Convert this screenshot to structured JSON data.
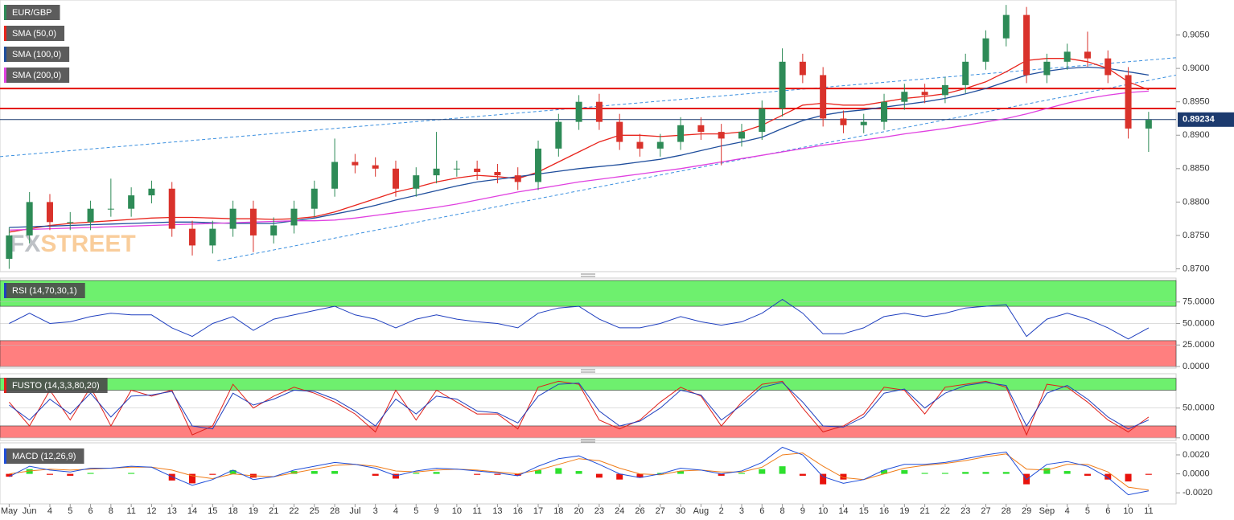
{
  "chart_data": [
    {
      "type": "candlestick",
      "title": "EUR/GBP",
      "watermark": [
        "FX",
        "STREET"
      ],
      "categories": [
        "May",
        "Jun",
        "4",
        "5",
        "6",
        "8",
        "11",
        "12",
        "13",
        "14",
        "15",
        "18",
        "19",
        "21",
        "22",
        "25",
        "28",
        "Jul",
        "3",
        "4",
        "5",
        "9",
        "10",
        "11",
        "13",
        "16",
        "17",
        "18",
        "20",
        "23",
        "24",
        "26",
        "27",
        "30",
        "Aug",
        "2",
        "3",
        "6",
        "8",
        "9",
        "10",
        "14",
        "15",
        "16",
        "19",
        "21",
        "22",
        "23",
        "27",
        "28",
        "29",
        "Sep",
        "4",
        "5",
        "6",
        "10",
        "11"
      ],
      "xlim": [
        -0.45,
        57.35
      ],
      "open": [
        0.8715,
        0.875,
        0.88,
        0.877,
        0.877,
        0.879,
        0.879,
        0.881,
        0.882,
        0.876,
        0.8735,
        0.876,
        0.879,
        0.875,
        0.8765,
        0.879,
        0.882,
        0.886,
        0.8855,
        0.885,
        0.882,
        0.884,
        0.885,
        0.885,
        0.8845,
        0.884,
        0.883,
        0.888,
        0.892,
        0.895,
        0.892,
        0.889,
        0.888,
        0.889,
        0.8915,
        0.8905,
        0.8895,
        0.8905,
        0.894,
        0.901,
        0.899,
        0.8925,
        0.8915,
        0.892,
        0.895,
        0.8965,
        0.896,
        0.8975,
        0.901,
        0.9045,
        0.908,
        0.899,
        0.901,
        0.9025,
        0.9015,
        0.899,
        0.891
      ],
      "high": [
        0.8762,
        0.8815,
        0.8812,
        0.8785,
        0.8802,
        0.8835,
        0.8822,
        0.8832,
        0.883,
        0.8772,
        0.8772,
        0.8802,
        0.8802,
        0.8777,
        0.8802,
        0.8832,
        0.8895,
        0.8872,
        0.8867,
        0.8862,
        0.8852,
        0.8905,
        0.8862,
        0.8862,
        0.8857,
        0.8852,
        0.8892,
        0.8932,
        0.896,
        0.8962,
        0.8932,
        0.8902,
        0.8902,
        0.8927,
        0.8927,
        0.8917,
        0.8917,
        0.8952,
        0.903,
        0.9022,
        0.9002,
        0.8937,
        0.8932,
        0.8962,
        0.8977,
        0.8977,
        0.8987,
        0.9022,
        0.9057,
        0.9095,
        0.9092,
        0.9022,
        0.9037,
        0.9055,
        0.9027,
        0.9002,
        0.8935
      ],
      "low": [
        0.87,
        0.8738,
        0.8758,
        0.8758,
        0.8758,
        0.8778,
        0.8778,
        0.8798,
        0.8748,
        0.872,
        0.8723,
        0.8748,
        0.8725,
        0.8738,
        0.8753,
        0.8778,
        0.8808,
        0.8843,
        0.8838,
        0.8808,
        0.8808,
        0.8828,
        0.8838,
        0.8833,
        0.8828,
        0.8818,
        0.8818,
        0.8868,
        0.8908,
        0.8908,
        0.8878,
        0.8868,
        0.8868,
        0.8878,
        0.8893,
        0.8855,
        0.8883,
        0.8893,
        0.8928,
        0.8978,
        0.8913,
        0.8903,
        0.8903,
        0.8908,
        0.8938,
        0.8948,
        0.8948,
        0.8963,
        0.8998,
        0.9033,
        0.8978,
        0.8978,
        0.8998,
        0.9003,
        0.8978,
        0.8895,
        0.8875
      ],
      "close": [
        0.875,
        0.88,
        0.877,
        0.877,
        0.879,
        0.879,
        0.881,
        0.882,
        0.876,
        0.8735,
        0.876,
        0.879,
        0.875,
        0.8765,
        0.879,
        0.882,
        0.886,
        0.8855,
        0.885,
        0.882,
        0.884,
        0.885,
        0.885,
        0.8845,
        0.884,
        0.883,
        0.888,
        0.892,
        0.895,
        0.892,
        0.889,
        0.888,
        0.889,
        0.8915,
        0.8905,
        0.8895,
        0.8905,
        0.894,
        0.901,
        0.899,
        0.8925,
        0.8915,
        0.892,
        0.895,
        0.8965,
        0.896,
        0.8975,
        0.901,
        0.9045,
        0.908,
        0.899,
        0.901,
        0.9025,
        0.9015,
        0.899,
        0.891,
        0.8923
      ],
      "up_color": "#2e8b57",
      "down_color": "#d9322b",
      "series": [
        {
          "name": "SMA (50,0)",
          "color": "#e8241c",
          "values": [
            0.8755,
            0.876,
            0.8765,
            0.8768,
            0.877,
            0.8772,
            0.8774,
            0.8776,
            0.8777,
            0.8777,
            0.8776,
            0.8775,
            0.8775,
            0.8774,
            0.8775,
            0.8778,
            0.8785,
            0.8795,
            0.8805,
            0.8815,
            0.8822,
            0.883,
            0.8836,
            0.884,
            0.8838,
            0.8835,
            0.8845,
            0.886,
            0.8875,
            0.889,
            0.89,
            0.89,
            0.8898,
            0.89,
            0.8902,
            0.8902,
            0.8905,
            0.8915,
            0.893,
            0.8945,
            0.8948,
            0.8945,
            0.8945,
            0.895,
            0.8955,
            0.8958,
            0.8962,
            0.897,
            0.898,
            0.8995,
            0.9012,
            0.9015,
            0.9015,
            0.901,
            0.9,
            0.898,
            0.8968
          ]
        },
        {
          "name": "SMA (100,0)",
          "color": "#1f4e9c",
          "values": [
            0.8762,
            0.8763,
            0.8764,
            0.8765,
            0.8766,
            0.8767,
            0.8768,
            0.8769,
            0.877,
            0.877,
            0.8769,
            0.8768,
            0.8768,
            0.8768,
            0.8772,
            0.8776,
            0.8782,
            0.8788,
            0.8795,
            0.8803,
            0.881,
            0.8817,
            0.8824,
            0.883,
            0.8834,
            0.8838,
            0.8842,
            0.8846,
            0.885,
            0.8853,
            0.8856,
            0.886,
            0.8864,
            0.887,
            0.8877,
            0.8884,
            0.889,
            0.8897,
            0.891,
            0.8922,
            0.893,
            0.8935,
            0.8938,
            0.8942,
            0.8946,
            0.895,
            0.8955,
            0.8962,
            0.897,
            0.898,
            0.899,
            0.8996,
            0.9,
            0.9002,
            0.9,
            0.8995,
            0.899
          ]
        },
        {
          "name": "SMA (200,0)",
          "color": "#e040e0",
          "values": [
            0.8758,
            0.8759,
            0.876,
            0.8761,
            0.8762,
            0.8763,
            0.8764,
            0.8765,
            0.8766,
            0.8767,
            0.8768,
            0.8769,
            0.877,
            0.8771,
            0.8772,
            0.8772,
            0.8773,
            0.8776,
            0.878,
            0.8784,
            0.8788,
            0.8792,
            0.8797,
            0.8803,
            0.8809,
            0.8815,
            0.882,
            0.8825,
            0.883,
            0.8834,
            0.8838,
            0.8842,
            0.8846,
            0.885,
            0.8855,
            0.886,
            0.8865,
            0.887,
            0.8875,
            0.888,
            0.8885,
            0.8889,
            0.8893,
            0.8897,
            0.8902,
            0.8906,
            0.891,
            0.8915,
            0.892,
            0.8925,
            0.8932,
            0.894,
            0.8948,
            0.8955,
            0.896,
            0.8964,
            0.8966
          ]
        }
      ],
      "hlines": [
        {
          "value": 0.897,
          "color": "#e3120b"
        },
        {
          "value": 0.894,
          "color": "#e3120b"
        }
      ],
      "trendlines": [
        {
          "x": [
            -0.45,
            57.35
          ],
          "y": [
            0.8868,
            0.9016
          ],
          "color": "#3a8fdf"
        },
        {
          "x": [
            10.24,
            57.35
          ],
          "y": [
            0.8712,
            0.899
          ],
          "color": "#3a8fdf"
        }
      ],
      "last_price": 0.89234,
      "last_price_color": "#1c3a6e",
      "ylim": [
        0.8697,
        0.91
      ],
      "yticks": [
        {
          "value": 0.87,
          "label": "0.8700"
        },
        {
          "value": 0.875,
          "label": "0.8750"
        },
        {
          "value": 0.88,
          "label": "0.8800"
        },
        {
          "value": 0.885,
          "label": "0.8850"
        },
        {
          "value": 0.89,
          "label": "0.8900"
        },
        {
          "value": 0.895,
          "label": "0.8950"
        },
        {
          "value": 0.9,
          "label": "0.9000"
        },
        {
          "value": 0.905,
          "label": "0.9050"
        }
      ]
    },
    {
      "type": "oscillator",
      "title": "RSI (14,70,30,1)",
      "ylim": [
        0,
        100
      ],
      "yticks": [
        {
          "value": 0,
          "label": "0.0000"
        },
        {
          "value": 25,
          "label": "25.0000"
        },
        {
          "value": 50,
          "label": "50.0000"
        },
        {
          "value": 75,
          "label": "75.0000"
        }
      ],
      "bands": [
        {
          "range": [
            70,
            100
          ],
          "color": "#6ef06e"
        },
        {
          "range": [
            0,
            30
          ],
          "color": "#ff7f7f"
        }
      ],
      "series": [
        {
          "color": "#1f3fbf",
          "values": [
            50,
            62,
            50,
            52,
            58,
            62,
            60,
            60,
            45,
            35,
            50,
            58,
            42,
            55,
            60,
            65,
            70,
            60,
            55,
            45,
            55,
            60,
            55,
            52,
            50,
            45,
            62,
            68,
            70,
            55,
            45,
            45,
            50,
            58,
            52,
            48,
            52,
            62,
            78,
            62,
            38,
            38,
            45,
            58,
            62,
            58,
            62,
            68,
            70,
            72,
            35,
            55,
            62,
            55,
            45,
            32,
            45
          ]
        }
      ]
    },
    {
      "type": "oscillator",
      "title": "FUSTO (14,3,3,80,20)",
      "ylim": [
        -3,
        105
      ],
      "yticks": [
        {
          "value": 0,
          "label": "0.0000"
        },
        {
          "value": 50,
          "label": "50.0000"
        }
      ],
      "bands": [
        {
          "range": [
            80,
            100
          ],
          "color": "#6ef06e"
        },
        {
          "range": [
            0,
            20
          ],
          "color": "#ff7f7f"
        }
      ],
      "series": [
        {
          "color": "#e0201a",
          "values": [
            60,
            20,
            80,
            30,
            85,
            20,
            80,
            70,
            80,
            5,
            20,
            90,
            50,
            70,
            85,
            75,
            60,
            40,
            10,
            80,
            30,
            80,
            60,
            40,
            40,
            15,
            85,
            95,
            90,
            30,
            15,
            30,
            60,
            85,
            70,
            20,
            60,
            90,
            95,
            50,
            10,
            20,
            40,
            85,
            80,
            40,
            85,
            90,
            95,
            85,
            5,
            90,
            85,
            60,
            30,
            10,
            35
          ]
        },
        {
          "color": "#1f3fbf",
          "values": [
            55,
            30,
            65,
            40,
            75,
            35,
            70,
            72,
            78,
            20,
            15,
            75,
            55,
            65,
            80,
            78,
            65,
            45,
            20,
            65,
            40,
            70,
            65,
            45,
            42,
            25,
            70,
            90,
            92,
            45,
            20,
            28,
            50,
            80,
            72,
            30,
            55,
            85,
            93,
            60,
            20,
            18,
            35,
            75,
            82,
            50,
            75,
            88,
            93,
            88,
            20,
            75,
            88,
            65,
            35,
            15,
            30
          ]
        }
      ]
    },
    {
      "type": "macd",
      "title": "MACD (12,26,9)",
      "ylim": [
        -0.003,
        0.0031
      ],
      "yticks": [
        {
          "value": -0.002,
          "label": "-0.0020"
        },
        {
          "value": 0,
          "label": "0.0000"
        },
        {
          "value": 0.002,
          "label": "0.0020"
        }
      ],
      "macd": {
        "color": "#1f4ed8",
        "values": [
          -0.0003,
          0.0008,
          0.0004,
          0.0002,
          0.0006,
          0.0006,
          0.0008,
          0.0007,
          -0.0003,
          -0.0012,
          -0.0006,
          0.0004,
          -0.0006,
          -0.0003,
          0.0004,
          0.0008,
          0.0012,
          0.001,
          0.0006,
          -0.0002,
          0.0003,
          0.0006,
          0.0005,
          0.0003,
          0.0001,
          -0.0002,
          0.0008,
          0.0016,
          0.0019,
          0.001,
          0,
          -0.0004,
          0,
          0.0006,
          0.0004,
          0,
          0.0003,
          0.0012,
          0.0028,
          0.002,
          -0.0003,
          -0.001,
          -0.0006,
          0.0004,
          0.001,
          0.001,
          0.0012,
          0.0016,
          0.002,
          0.0023,
          -0.0006,
          0.001,
          0.0013,
          0.0008,
          -0.0004,
          -0.0022,
          -0.0018
        ]
      },
      "signal": {
        "color": "#f07c18",
        "values": [
          0,
          0.0003,
          0.0005,
          0.0004,
          0.0005,
          0.0006,
          0.0007,
          0.0007,
          0.0004,
          -0.0002,
          -0.0005,
          0,
          -0.0002,
          -0.0003,
          0.0001,
          0.0005,
          0.0009,
          0.001,
          0.0008,
          0.0003,
          0.0002,
          0.0004,
          0.0005,
          0.0004,
          0.0002,
          0,
          0.0004,
          0.001,
          0.0016,
          0.0014,
          0.0006,
          0,
          -0.0001,
          0.0003,
          0.0004,
          0.0002,
          0.0002,
          0.0007,
          0.002,
          0.0022,
          0.0008,
          -0.0004,
          -0.0006,
          0,
          0.0006,
          0.0009,
          0.0011,
          0.0014,
          0.0018,
          0.0021,
          0.0005,
          0.0004,
          0.001,
          0.001,
          0.0002,
          -0.0014,
          -0.0017
        ]
      },
      "histogram": {
        "positive_color": "#2ee02e",
        "negative_color": "#e8120c",
        "values": [
          -0.0003,
          0.0005,
          -0.0001,
          -0.0002,
          0.0001,
          0,
          0.0001,
          0,
          -0.0007,
          -0.001,
          -0.0001,
          0.0004,
          -0.0004,
          0,
          0.0003,
          0.0003,
          0.0003,
          0,
          -0.0002,
          -0.0005,
          0.0001,
          0.0002,
          0,
          -0.0001,
          -0.0001,
          -0.0002,
          0.0004,
          0.0006,
          0.0003,
          -0.0004,
          -0.0006,
          -0.0004,
          0.0001,
          0.0003,
          0,
          -0.0002,
          0.0001,
          0.0005,
          0.0008,
          -0.0002,
          -0.0011,
          -0.0006,
          0,
          0.0004,
          0.0004,
          0.0001,
          0.0001,
          0.0002,
          0.0002,
          0.0002,
          -0.0011,
          0.0006,
          0.0003,
          -0.0002,
          -0.0006,
          -0.0008,
          -0.0001
        ]
      }
    }
  ]
}
